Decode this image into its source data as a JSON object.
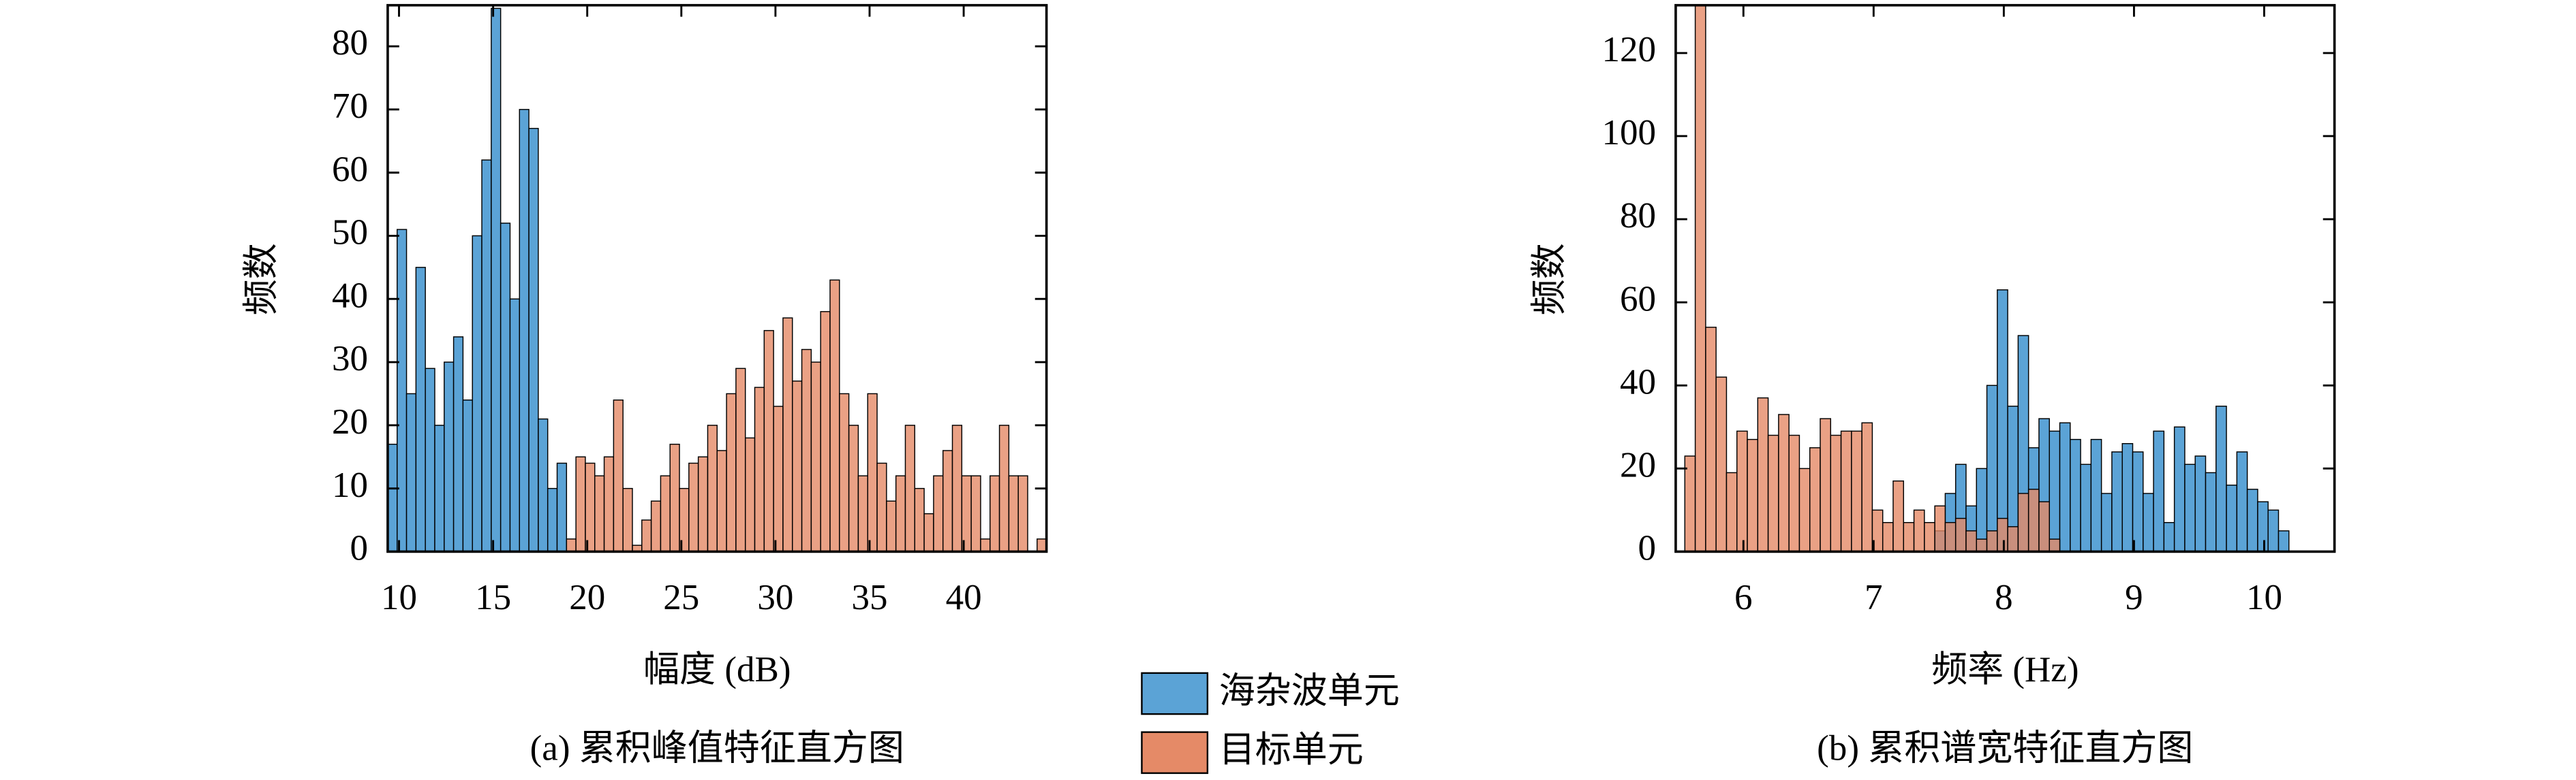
{
  "chart_data": [
    {
      "type": "histogram",
      "caption": "(a) 累积峰值特征直方图",
      "xlabel": "幅度 (dB)",
      "ylabel": "频数",
      "bins": [
        9.4,
        9.9,
        10.4,
        10.9,
        11.4,
        11.9,
        12.4,
        12.9,
        13.4,
        13.9,
        14.4,
        14.9,
        15.4,
        15.9,
        16.4,
        16.9,
        17.4,
        17.9,
        18.4,
        18.9,
        19.4,
        19.9,
        20.4,
        20.9,
        21.4,
        21.9,
        22.4,
        22.9,
        23.4,
        23.9,
        24.4,
        24.9,
        25.4,
        25.9,
        26.4,
        26.9,
        27.4,
        27.9,
        28.4,
        28.9,
        29.4,
        29.9,
        30.4,
        30.9,
        31.4,
        31.9,
        32.4,
        32.9,
        33.4,
        33.9,
        34.4,
        34.9,
        35.4,
        35.9,
        36.4,
        36.9,
        37.4,
        37.9,
        38.4,
        38.9,
        39.4,
        39.9,
        40.4,
        40.9,
        41.4,
        41.9,
        42.4,
        42.9,
        43.4,
        43.9,
        44.4
      ],
      "series": [
        {
          "name": "海杂波单元",
          "color": "#5ba3d6",
          "values": [
            17,
            51,
            25,
            45,
            29,
            20,
            30,
            34,
            24,
            50,
            62,
            86,
            52,
            40,
            70,
            67,
            21,
            10,
            14,
            0,
            0,
            0,
            0,
            0,
            0,
            0,
            0,
            0,
            0,
            0,
            0,
            0,
            0,
            0,
            0,
            0,
            0,
            0,
            0,
            0,
            0,
            0,
            0,
            0,
            0,
            0,
            0,
            0,
            0,
            0,
            0,
            0,
            0,
            0,
            0,
            0,
            0,
            0,
            0,
            0,
            0,
            0,
            0,
            0,
            0,
            0,
            0,
            0,
            0,
            0
          ]
        },
        {
          "name": "目标单元",
          "color": "#e58a67",
          "values": [
            0,
            0,
            0,
            0,
            0,
            0,
            0,
            0,
            0,
            0,
            0,
            0,
            0,
            0,
            0,
            0,
            0,
            0,
            0,
            2,
            15,
            14,
            12,
            15,
            24,
            10,
            1,
            5,
            8,
            12,
            17,
            10,
            14,
            15,
            20,
            16,
            25,
            29,
            18,
            26,
            35,
            23,
            37,
            27,
            32,
            30,
            38,
            43,
            25,
            20,
            12,
            25,
            14,
            8,
            12,
            20,
            10,
            6,
            12,
            16,
            20,
            12,
            12,
            2,
            12,
            20,
            12,
            12,
            0,
            2
          ]
        }
      ],
      "xlim": [
        9.4,
        44.4
      ],
      "xticks": [
        10,
        15,
        20,
        25,
        30,
        35,
        40
      ],
      "ylim": [
        0,
        86.5
      ],
      "yticks": [
        0,
        10,
        20,
        30,
        40,
        50,
        60,
        70,
        80
      ]
    },
    {
      "type": "histogram",
      "caption": "(b) 累积谱宽特征直方图",
      "xlabel": "频率 (Hz)",
      "ylabel": "频数",
      "bins": [
        5.55,
        5.63,
        5.71,
        5.79,
        5.87,
        5.95,
        6.03,
        6.11,
        6.19,
        6.27,
        6.35,
        6.43,
        6.51,
        6.59,
        6.67,
        6.75,
        6.83,
        6.91,
        6.99,
        7.07,
        7.15,
        7.23,
        7.31,
        7.39,
        7.47,
        7.55,
        7.63,
        7.71,
        7.79,
        7.87,
        7.95,
        8.03,
        8.11,
        8.19,
        8.27,
        8.35,
        8.43,
        8.51,
        8.59,
        8.67,
        8.75,
        8.83,
        8.91,
        8.99,
        9.07,
        9.15,
        9.23,
        9.31,
        9.39,
        9.47,
        9.55,
        9.63,
        9.71,
        9.79,
        9.87,
        9.95,
        10.03,
        10.11,
        10.19,
        10.27,
        10.35
      ],
      "series": [
        {
          "color": "#5ba3d6",
          "values": [
            0,
            0,
            0,
            0,
            0,
            0,
            0,
            0,
            0,
            0,
            0,
            0,
            0,
            0,
            0,
            0,
            0,
            0,
            0,
            0,
            0,
            0,
            0,
            0,
            5,
            14,
            21,
            11,
            20,
            40,
            63,
            35,
            52,
            25,
            32,
            29,
            31,
            27,
            21,
            27,
            14,
            24,
            26,
            24,
            14,
            29,
            7,
            30,
            21,
            23,
            19,
            35,
            16,
            24,
            15,
            12,
            10,
            5,
            0,
            0
          ]
        },
        {
          "color": "#e58a67",
          "values": [
            23,
            132,
            54,
            42,
            19,
            29,
            27,
            37,
            28,
            33,
            28,
            20,
            25,
            32,
            28,
            29,
            29,
            31,
            10,
            7,
            17,
            7,
            10,
            7,
            11,
            7,
            8,
            5,
            3,
            5,
            8,
            6,
            14,
            15,
            12,
            3,
            0,
            0,
            0,
            0,
            0,
            0,
            0,
            0,
            0,
            0,
            0,
            0,
            0,
            0,
            0,
            0,
            0,
            0,
            0,
            0,
            0,
            0,
            0,
            0
          ]
        }
      ],
      "xlim": [
        5.48,
        10.54
      ],
      "xticks": [
        6,
        7,
        8,
        9,
        10
      ],
      "ylim": [
        0,
        131.5
      ],
      "yticks": [
        0,
        20,
        40,
        60,
        80,
        100,
        120
      ]
    }
  ]
}
